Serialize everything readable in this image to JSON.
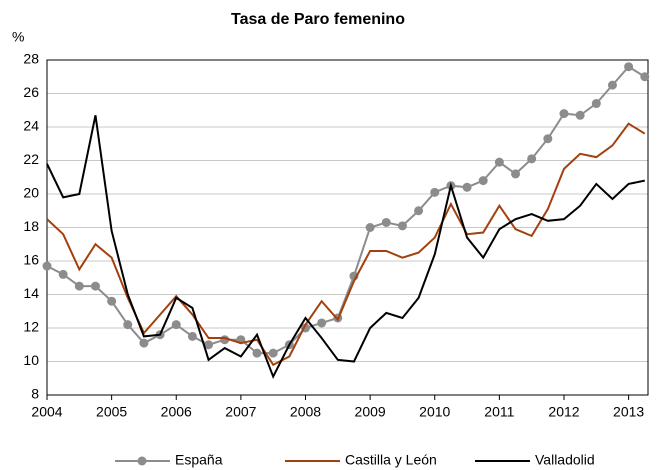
{
  "chart_data": {
    "type": "line",
    "title": "Tasa de Paro femenino",
    "y_label": "%",
    "x": [
      2004,
      2004.25,
      2004.5,
      2004.75,
      2005,
      2005.25,
      2005.5,
      2005.75,
      2006,
      2006.25,
      2006.5,
      2006.75,
      2007,
      2007.25,
      2007.5,
      2007.75,
      2008,
      2008.25,
      2008.5,
      2008.75,
      2009,
      2009.25,
      2009.5,
      2009.75,
      2010,
      2010.25,
      2010.5,
      2010.75,
      2011,
      2011.25,
      2011.5,
      2011.75,
      2012,
      2012.25,
      2012.5,
      2012.75,
      2013,
      2013.25
    ],
    "xlim": [
      2004,
      2013.3
    ],
    "xticks": [
      2004,
      2005,
      2006,
      2007,
      2008,
      2009,
      2010,
      2011,
      2012,
      2013
    ],
    "ylim": [
      8,
      28
    ],
    "yticks": [
      8,
      10,
      12,
      14,
      16,
      18,
      20,
      22,
      24,
      26,
      28
    ],
    "grid": true,
    "legend": "bottom",
    "series": [
      {
        "name": "España",
        "color": "#8c8c8c",
        "marker": true,
        "values": [
          15.7,
          15.2,
          14.5,
          14.5,
          13.6,
          12.2,
          11.1,
          11.6,
          12.2,
          11.5,
          11.0,
          11.3,
          11.3,
          10.5,
          10.5,
          11.0,
          12.0,
          12.3,
          12.6,
          15.1,
          18.0,
          18.3,
          18.1,
          19.0,
          20.1,
          20.5,
          20.4,
          20.8,
          21.9,
          21.2,
          22.1,
          23.3,
          24.8,
          24.7,
          25.4,
          26.5,
          27.6,
          27.0
        ]
      },
      {
        "name": "Castilla y León",
        "color": "#a3400e",
        "marker": false,
        "values": [
          18.5,
          17.6,
          15.5,
          17.0,
          16.2,
          13.8,
          11.7,
          12.8,
          13.9,
          12.8,
          11.4,
          11.4,
          11.1,
          11.3,
          9.8,
          10.3,
          12.2,
          13.6,
          12.5,
          14.8,
          16.6,
          16.6,
          16.2,
          16.5,
          17.4,
          19.4,
          17.6,
          17.7,
          19.3,
          17.9,
          17.5,
          19.1,
          21.5,
          22.4,
          22.2,
          22.9,
          24.2,
          23.6
        ]
      },
      {
        "name": "Valladolid",
        "color": "#000000",
        "marker": false,
        "values": [
          21.8,
          19.8,
          20.0,
          24.7,
          17.8,
          14.0,
          11.5,
          11.6,
          13.8,
          13.2,
          10.1,
          10.8,
          10.3,
          11.6,
          9.1,
          11.0,
          12.6,
          11.4,
          10.1,
          10.0,
          12.0,
          12.9,
          12.6,
          13.8,
          16.4,
          20.5,
          17.4,
          16.2,
          17.9,
          18.5,
          18.8,
          18.4,
          18.5,
          19.3,
          20.6,
          19.7,
          20.6,
          20.8
        ]
      }
    ]
  }
}
